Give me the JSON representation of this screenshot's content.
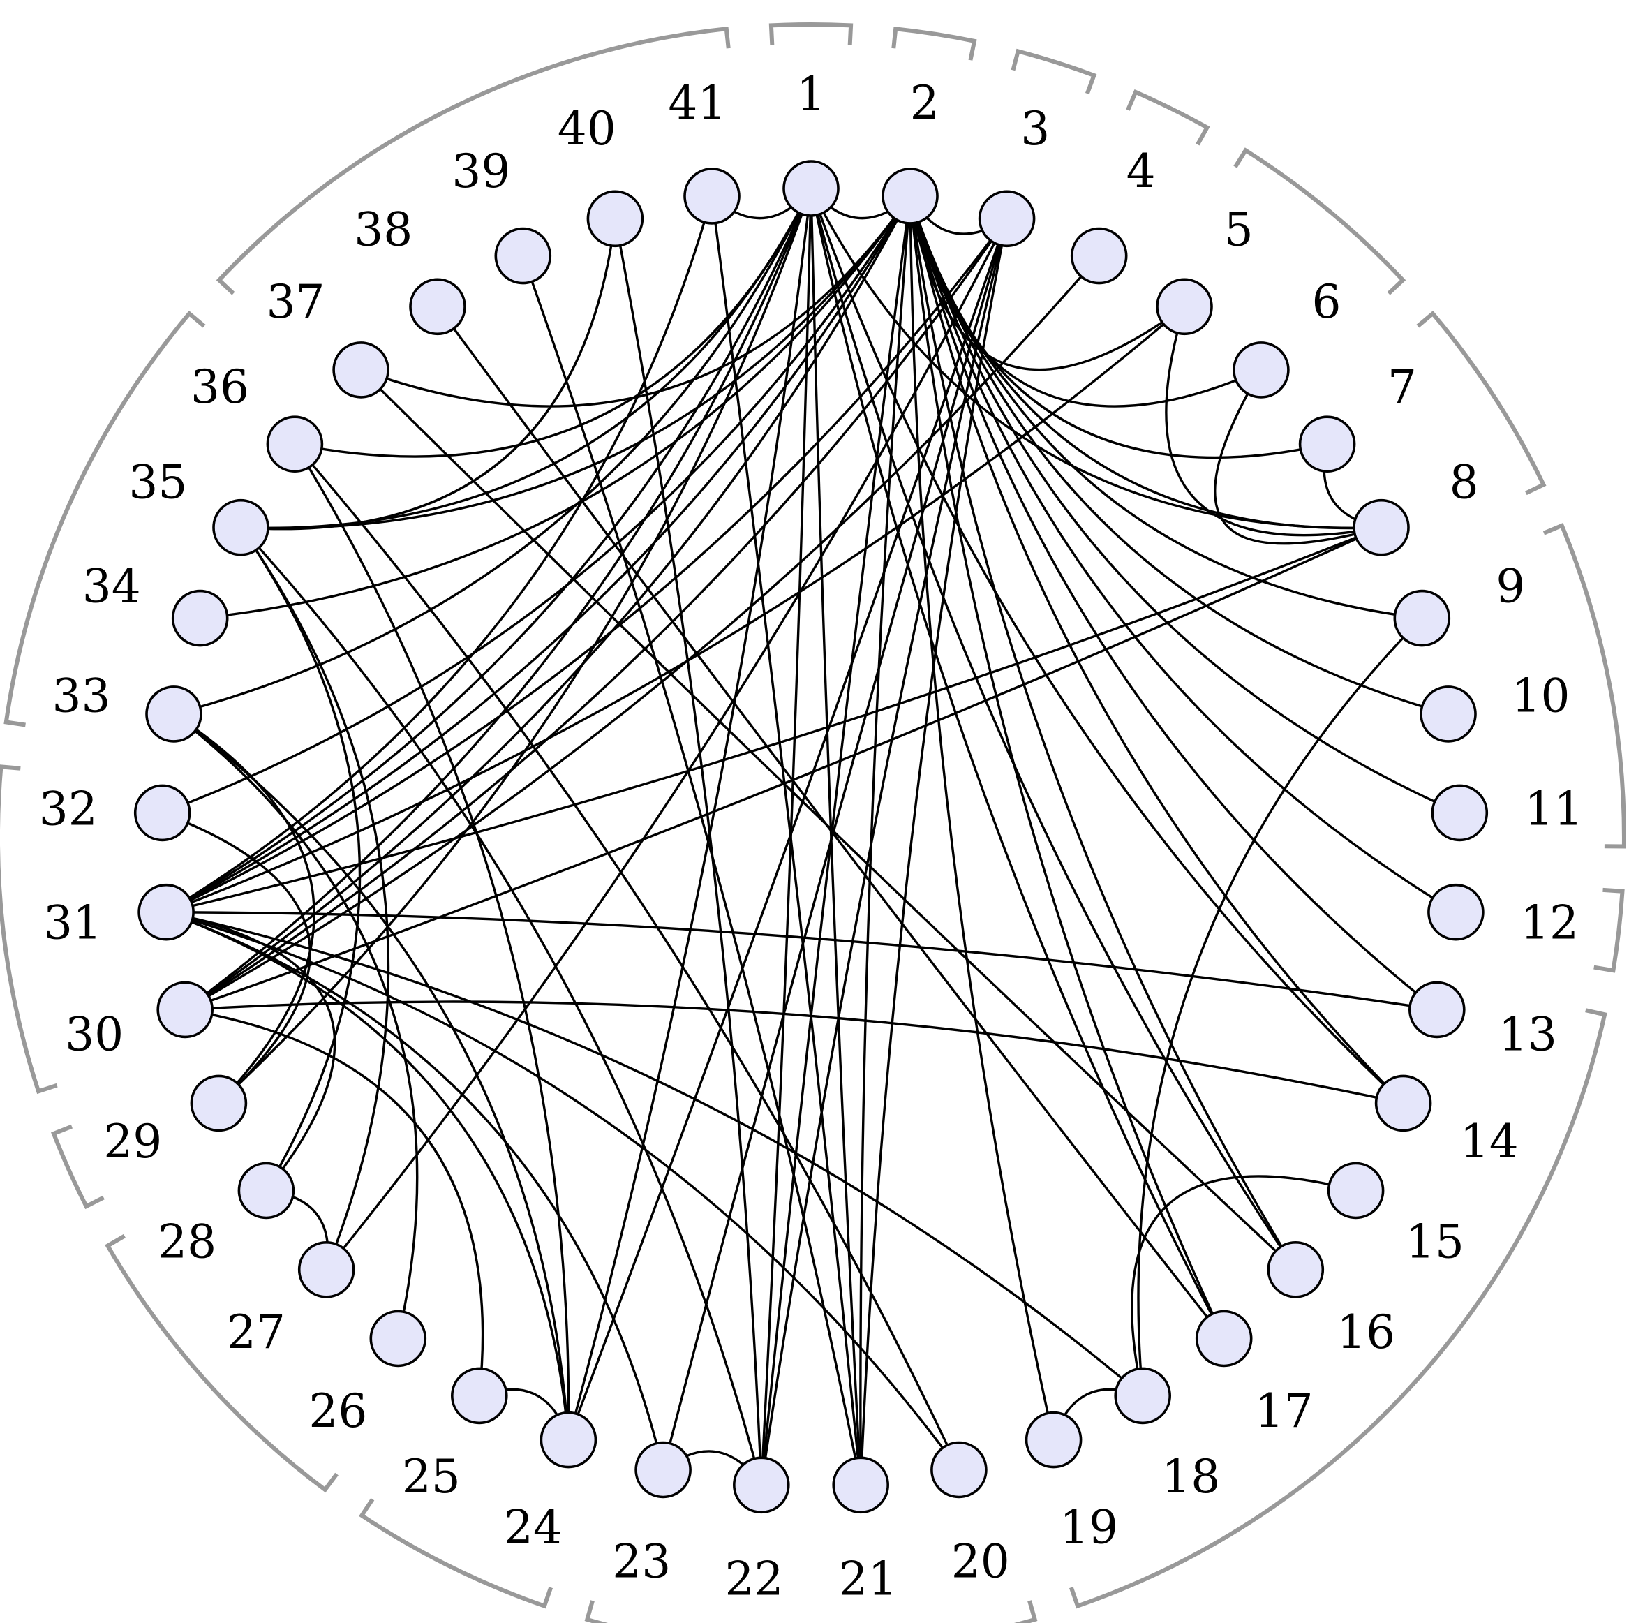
{
  "graph": {
    "node_fill": "#e5e6fa",
    "edge_color": "#000000",
    "bracket_color": "#999999",
    "nodes": [
      "1",
      "2",
      "3",
      "4",
      "5",
      "6",
      "7",
      "8",
      "9",
      "10",
      "11",
      "12",
      "13",
      "14",
      "15",
      "16",
      "17",
      "18",
      "19",
      "20",
      "21",
      "22",
      "23",
      "24",
      "25",
      "26",
      "27",
      "28",
      "29",
      "30",
      "31",
      "32",
      "33",
      "34",
      "35",
      "36",
      "37",
      "38",
      "39",
      "40",
      "41"
    ],
    "edges": [
      [
        1,
        41
      ],
      [
        1,
        2
      ],
      [
        1,
        21
      ],
      [
        1,
        22
      ],
      [
        1,
        24
      ],
      [
        1,
        14
      ],
      [
        1,
        17
      ],
      [
        1,
        30
      ],
      [
        1,
        31
      ],
      [
        1,
        8
      ],
      [
        1,
        16
      ],
      [
        1,
        35
      ],
      [
        1,
        36
      ],
      [
        1,
        33
      ],
      [
        1,
        29
      ],
      [
        2,
        3
      ],
      [
        2,
        5
      ],
      [
        2,
        6
      ],
      [
        2,
        7
      ],
      [
        2,
        8
      ],
      [
        2,
        9
      ],
      [
        2,
        10
      ],
      [
        2,
        11
      ],
      [
        2,
        12
      ],
      [
        2,
        13
      ],
      [
        2,
        14
      ],
      [
        2,
        16
      ],
      [
        2,
        17
      ],
      [
        2,
        19
      ],
      [
        2,
        21
      ],
      [
        2,
        22
      ],
      [
        2,
        31
      ],
      [
        2,
        32
      ],
      [
        2,
        34
      ],
      [
        2,
        35
      ],
      [
        2,
        37
      ],
      [
        2,
        30
      ],
      [
        3,
        22
      ],
      [
        3,
        23
      ],
      [
        3,
        24
      ],
      [
        3,
        30
      ],
      [
        3,
        31
      ],
      [
        3,
        27
      ],
      [
        3,
        21
      ],
      [
        4,
        30
      ],
      [
        5,
        8
      ],
      [
        5,
        31
      ],
      [
        6,
        8
      ],
      [
        7,
        8
      ],
      [
        8,
        31
      ],
      [
        8,
        30
      ],
      [
        9,
        18
      ],
      [
        15,
        18
      ],
      [
        14,
        30
      ],
      [
        13,
        31
      ],
      [
        18,
        19
      ],
      [
        41,
        21
      ],
      [
        41,
        31
      ],
      [
        40,
        35
      ],
      [
        39,
        21
      ],
      [
        38,
        17
      ],
      [
        37,
        16
      ],
      [
        36,
        20
      ],
      [
        36,
        24
      ],
      [
        35,
        22
      ],
      [
        35,
        27
      ],
      [
        35,
        28
      ],
      [
        40,
        22
      ],
      [
        33,
        29
      ],
      [
        33,
        26
      ],
      [
        33,
        24
      ],
      [
        32,
        29
      ],
      [
        31,
        28
      ],
      [
        31,
        24
      ],
      [
        31,
        18
      ],
      [
        31,
        20
      ],
      [
        31,
        23
      ],
      [
        30,
        25
      ],
      [
        24,
        25
      ],
      [
        22,
        23
      ],
      [
        28,
        27
      ]
    ],
    "brackets": [
      {
        "from": 37,
        "to": 41
      },
      {
        "from": 1,
        "to": 1
      },
      {
        "from": 2,
        "to": 2
      },
      {
        "from": 3,
        "to": 3
      },
      {
        "from": 4,
        "to": 4
      },
      {
        "from": 5,
        "to": 6
      },
      {
        "from": 7,
        "to": 8
      },
      {
        "from": 9,
        "to": 11
      },
      {
        "from": 12,
        "to": 12
      },
      {
        "from": 13,
        "to": 19
      },
      {
        "from": 20,
        "to": 21
      },
      {
        "from": 22,
        "to": 23
      },
      {
        "from": 24,
        "to": 25
      },
      {
        "from": 26,
        "to": 28
      },
      {
        "from": 29,
        "to": 29
      },
      {
        "from": 30,
        "to": 32
      },
      {
        "from": 33,
        "to": 36
      }
    ]
  }
}
